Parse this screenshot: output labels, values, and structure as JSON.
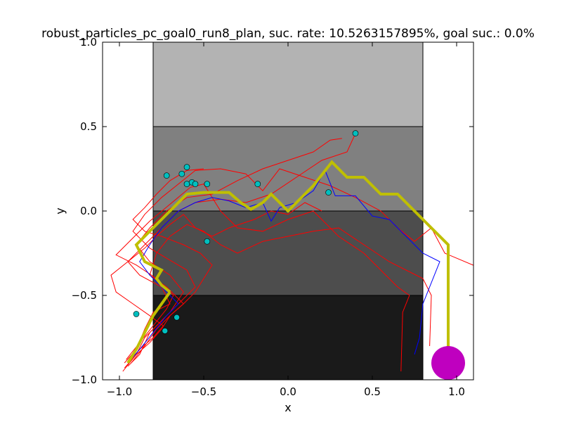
{
  "chart_data": {
    "type": "line",
    "title": "robust_particles_pc_goal0_run8_plan, suc. rate: 10.5263157895%, goal suc.: 0.0%",
    "xlabel": "x",
    "ylabel": "y",
    "xlim": [
      -1.1,
      1.1
    ],
    "ylim": [
      -1.0,
      1.0
    ],
    "x_ticks": [
      -1.0,
      -0.5,
      0.0,
      0.5,
      1.0
    ],
    "x_tick_labels": [
      "−1.0",
      "−0.5",
      "0.0",
      "0.5",
      "1.0"
    ],
    "y_ticks": [
      -1.0,
      -0.5,
      0.0,
      0.5,
      1.0
    ],
    "y_tick_labels": [
      "−1.0",
      "−0.5",
      "0.0",
      "0.5",
      "1.0"
    ],
    "grid": false,
    "regions": [
      {
        "x0": -0.8,
        "x1": 0.8,
        "y0": 0.5,
        "y1": 1.0,
        "color": "#b3b3b3"
      },
      {
        "x0": -0.8,
        "x1": 0.8,
        "y0": 0.0,
        "y1": 0.5,
        "color": "#808080"
      },
      {
        "x0": -0.8,
        "x1": 0.8,
        "y0": -0.5,
        "y1": 0.0,
        "color": "#4d4d4d"
      },
      {
        "x0": -0.8,
        "x1": 0.8,
        "y0": -1.0,
        "y1": -0.5,
        "color": "#1a1a1a"
      }
    ],
    "series": [
      {
        "color": "#ff0000",
        "points": [
          [
            -0.97,
            -0.9
          ],
          [
            -0.9,
            -0.82
          ],
          [
            -0.85,
            -0.7
          ],
          [
            -0.8,
            -0.6
          ],
          [
            -0.7,
            -0.55
          ],
          [
            -0.75,
            -0.45
          ],
          [
            -0.88,
            -0.38
          ],
          [
            -0.95,
            -0.3
          ],
          [
            -0.85,
            -0.2
          ],
          [
            -0.75,
            -0.1
          ],
          [
            -0.65,
            0.0
          ],
          [
            -0.55,
            0.05
          ],
          [
            -0.4,
            0.07
          ],
          [
            -0.25,
            0.05
          ],
          [
            -0.1,
            0.1
          ],
          [
            0.05,
            0.2
          ],
          [
            0.2,
            0.3
          ],
          [
            0.35,
            0.35
          ],
          [
            0.4,
            0.46
          ]
        ]
      },
      {
        "color": "#ff0000",
        "points": [
          [
            -0.95,
            -0.92
          ],
          [
            -0.88,
            -0.85
          ],
          [
            -0.82,
            -0.72
          ],
          [
            -0.7,
            -0.6
          ],
          [
            -0.62,
            -0.48
          ],
          [
            -0.7,
            -0.38
          ],
          [
            -0.82,
            -0.3
          ],
          [
            -0.9,
            -0.2
          ],
          [
            -0.82,
            -0.1
          ],
          [
            -0.72,
            0.0
          ],
          [
            -0.6,
            0.08
          ],
          [
            -0.45,
            0.1
          ],
          [
            -0.3,
            0.18
          ],
          [
            -0.15,
            0.25
          ],
          [
            0.0,
            0.3
          ],
          [
            0.15,
            0.35
          ],
          [
            0.25,
            0.42
          ],
          [
            0.32,
            0.43
          ]
        ]
      },
      {
        "color": "#ff0000",
        "points": [
          [
            -0.98,
            -0.95
          ],
          [
            -0.9,
            -0.85
          ],
          [
            -0.85,
            -0.75
          ],
          [
            -0.75,
            -0.65
          ],
          [
            -0.65,
            -0.55
          ],
          [
            -0.55,
            -0.45
          ],
          [
            -0.6,
            -0.35
          ],
          [
            -0.72,
            -0.28
          ],
          [
            -0.82,
            -0.22
          ],
          [
            -0.92,
            -0.12
          ],
          [
            -0.85,
            -0.02
          ],
          [
            -0.75,
            0.08
          ],
          [
            -0.65,
            0.16
          ],
          [
            -0.55,
            0.24
          ],
          [
            -0.4,
            0.25
          ],
          [
            -0.25,
            0.22
          ],
          [
            -0.15,
            0.12
          ],
          [
            -0.05,
            0.25
          ],
          [
            0.1,
            0.2
          ],
          [
            0.25,
            0.15
          ],
          [
            0.4,
            0.08
          ],
          [
            0.55,
            0.0
          ],
          [
            0.65,
            -0.1
          ],
          [
            0.75,
            -0.18
          ],
          [
            0.85,
            -0.1
          ],
          [
            0.93,
            -0.25
          ],
          [
            1.12,
            -0.33
          ]
        ]
      },
      {
        "color": "#ff0000",
        "points": [
          [
            -0.96,
            -0.88
          ],
          [
            -0.88,
            -0.78
          ],
          [
            -0.8,
            -0.68
          ],
          [
            -0.72,
            -0.58
          ],
          [
            -0.68,
            -0.5
          ],
          [
            -0.78,
            -0.4
          ],
          [
            -0.9,
            -0.32
          ],
          [
            -1.02,
            -0.26
          ],
          [
            -0.92,
            -0.16
          ],
          [
            -0.82,
            -0.06
          ],
          [
            -0.7,
            0.04
          ],
          [
            -0.58,
            0.14
          ],
          [
            -0.5,
            0.16
          ],
          [
            -0.4,
            0.0
          ],
          [
            -0.3,
            -0.1
          ],
          [
            -0.15,
            -0.12
          ],
          [
            0.0,
            -0.05
          ],
          [
            0.15,
            0.0
          ],
          [
            0.3,
            -0.15
          ],
          [
            0.45,
            -0.25
          ],
          [
            0.55,
            -0.35
          ],
          [
            0.65,
            -0.45
          ],
          [
            0.72,
            -0.5
          ],
          [
            0.68,
            -0.6
          ],
          [
            0.67,
            -0.95
          ]
        ]
      },
      {
        "color": "#ff0000",
        "points": [
          [
            -0.93,
            -0.9
          ],
          [
            -0.85,
            -0.8
          ],
          [
            -0.78,
            -0.7
          ],
          [
            -0.7,
            -0.62
          ],
          [
            -0.62,
            -0.55
          ],
          [
            -0.72,
            -0.45
          ],
          [
            -0.82,
            -0.38
          ],
          [
            -0.78,
            -0.25
          ],
          [
            -0.7,
            -0.15
          ],
          [
            -0.6,
            -0.08
          ],
          [
            -0.5,
            -0.12
          ],
          [
            -0.4,
            -0.2
          ],
          [
            -0.3,
            -0.25
          ],
          [
            -0.15,
            -0.18
          ],
          [
            0.0,
            -0.15
          ],
          [
            0.15,
            -0.12
          ],
          [
            0.3,
            -0.1
          ],
          [
            0.45,
            -0.2
          ],
          [
            0.6,
            -0.3
          ],
          [
            0.7,
            -0.35
          ],
          [
            0.8,
            -0.4
          ],
          [
            0.85,
            -0.5
          ],
          [
            0.84,
            -0.8
          ]
        ]
      },
      {
        "color": "#ff0000",
        "points": [
          [
            -0.95,
            -0.9
          ],
          [
            -0.88,
            -0.82
          ],
          [
            -0.8,
            -0.75
          ],
          [
            -0.74,
            -0.68
          ],
          [
            -0.82,
            -0.62
          ],
          [
            -0.92,
            -0.55
          ],
          [
            -1.02,
            -0.48
          ],
          [
            -1.05,
            -0.38
          ],
          [
            -0.95,
            -0.3
          ],
          [
            -0.85,
            -0.22
          ],
          [
            -0.78,
            -0.15
          ],
          [
            -0.7,
            -0.08
          ],
          [
            -0.62,
            -0.02
          ],
          [
            -0.55,
            -0.1
          ],
          [
            -0.45,
            -0.15
          ],
          [
            -0.35,
            -0.1
          ],
          [
            -0.2,
            -0.05
          ],
          [
            -0.1,
            0.0
          ],
          [
            0.0,
            -0.02
          ],
          [
            0.1,
            0.05
          ],
          [
            0.2,
            0.0
          ]
        ]
      },
      {
        "color": "#ff0000",
        "points": [
          [
            -0.97,
            -0.93
          ],
          [
            -0.9,
            -0.85
          ],
          [
            -0.82,
            -0.78
          ],
          [
            -0.75,
            -0.7
          ],
          [
            -0.7,
            -0.62
          ],
          [
            -0.62,
            -0.55
          ],
          [
            -0.55,
            -0.48
          ],
          [
            -0.5,
            -0.4
          ],
          [
            -0.45,
            -0.32
          ],
          [
            -0.52,
            -0.25
          ],
          [
            -0.62,
            -0.2
          ],
          [
            -0.75,
            -0.15
          ],
          [
            -0.85,
            -0.12
          ],
          [
            -0.92,
            -0.05
          ],
          [
            -0.85,
            0.02
          ],
          [
            -0.78,
            0.1
          ],
          [
            -0.7,
            0.18
          ],
          [
            -0.6,
            0.24
          ],
          [
            -0.5,
            0.25
          ]
        ]
      },
      {
        "color": "#0000ff",
        "points": [
          [
            -0.95,
            -0.9
          ],
          [
            -0.88,
            -0.82
          ],
          [
            -0.8,
            -0.72
          ],
          [
            -0.72,
            -0.62
          ],
          [
            -0.65,
            -0.55
          ],
          [
            -0.75,
            -0.45
          ],
          [
            -0.82,
            -0.38
          ],
          [
            -0.88,
            -0.3
          ],
          [
            -0.82,
            -0.2
          ],
          [
            -0.75,
            -0.1
          ],
          [
            -0.65,
            0.0
          ],
          [
            -0.55,
            0.05
          ],
          [
            -0.45,
            0.08
          ],
          [
            -0.35,
            0.06
          ],
          [
            -0.25,
            0.02
          ],
          [
            -0.15,
            0.05
          ],
          [
            -0.1,
            -0.06
          ],
          [
            -0.05,
            0.02
          ],
          [
            0.05,
            0.05
          ],
          [
            0.15,
            0.12
          ],
          [
            0.22,
            0.24
          ],
          [
            0.28,
            0.09
          ],
          [
            0.4,
            0.09
          ],
          [
            0.5,
            -0.03
          ],
          [
            0.6,
            -0.05
          ],
          [
            0.7,
            -0.15
          ],
          [
            0.8,
            -0.25
          ],
          [
            0.9,
            -0.3
          ],
          [
            0.8,
            -0.55
          ],
          [
            0.78,
            -0.75
          ],
          [
            0.75,
            -0.85
          ]
        ]
      },
      {
        "color": "#bfbf00",
        "width": 4,
        "points": [
          [
            -0.7,
            -0.48
          ],
          [
            -0.75,
            -0.44
          ],
          [
            -0.78,
            -0.4
          ],
          [
            -0.75,
            -0.35
          ],
          [
            -0.85,
            -0.3
          ],
          [
            -0.9,
            -0.2
          ],
          [
            -0.8,
            -0.1
          ],
          [
            -0.7,
            0.0
          ],
          [
            -0.6,
            0.1
          ],
          [
            -0.5,
            0.11
          ],
          [
            -0.42,
            0.11
          ],
          [
            -0.35,
            0.11
          ],
          [
            -0.28,
            0.05
          ],
          [
            -0.22,
            0.01
          ],
          [
            -0.15,
            0.05
          ],
          [
            -0.1,
            0.1
          ],
          [
            -0.05,
            0.05
          ],
          [
            0.0,
            0.0
          ],
          [
            0.05,
            0.05
          ],
          [
            0.1,
            0.1
          ],
          [
            0.15,
            0.15
          ],
          [
            0.26,
            0.29
          ],
          [
            0.35,
            0.2
          ],
          [
            0.45,
            0.2
          ],
          [
            0.55,
            0.1
          ],
          [
            0.65,
            0.1
          ],
          [
            0.8,
            -0.05
          ],
          [
            0.95,
            -0.2
          ],
          [
            0.95,
            -0.9
          ]
        ]
      }
    ],
    "yellow_tail": [
      [
        -0.7,
        -0.48
      ],
      [
        -0.75,
        -0.55
      ],
      [
        -0.8,
        -0.62
      ],
      [
        -0.85,
        -0.72
      ],
      [
        -0.9,
        -0.82
      ],
      [
        -0.95,
        -0.9
      ]
    ],
    "particles": [
      [
        -0.72,
        0.21
      ],
      [
        -0.6,
        0.26
      ],
      [
        -0.63,
        0.22
      ],
      [
        -0.6,
        0.16
      ],
      [
        -0.57,
        0.17
      ],
      [
        -0.55,
        0.16
      ],
      [
        -0.48,
        0.16
      ],
      [
        -0.18,
        0.16
      ],
      [
        0.24,
        0.11
      ],
      [
        0.4,
        0.46
      ],
      [
        -0.48,
        -0.18
      ],
      [
        -0.9,
        -0.61
      ],
      [
        -0.73,
        -0.71
      ],
      [
        -0.66,
        -0.63
      ]
    ],
    "particle_color": "#00bfbf",
    "goal": {
      "x": 0.95,
      "y": -0.9,
      "r": 0.1,
      "color": "#bf00bf"
    }
  }
}
